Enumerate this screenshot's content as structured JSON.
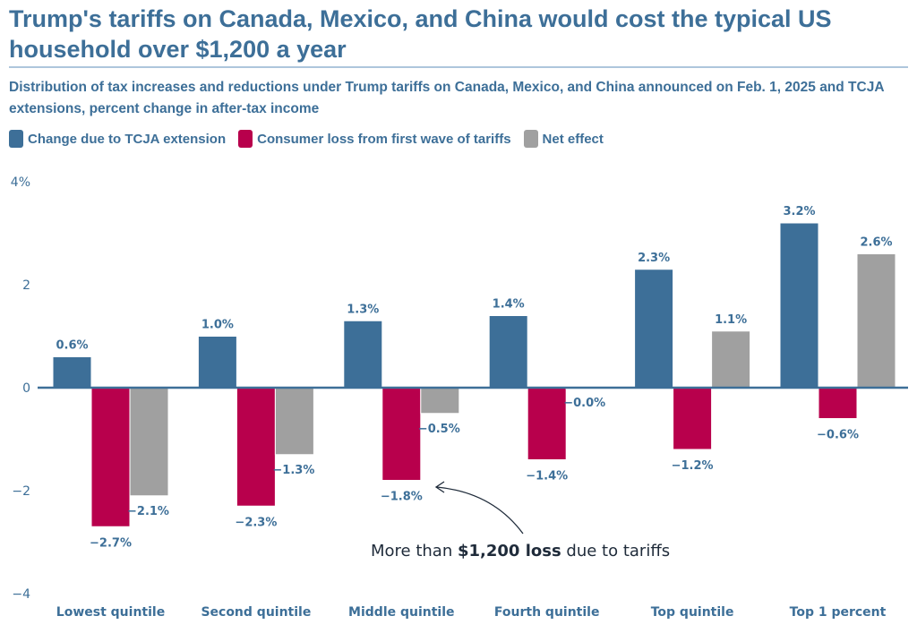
{
  "header": {
    "title": "Trump's tariffs on Canada, Mexico, and China would cost the typical US household over $1,200 a year",
    "subtitle": "Distribution of tax increases and reductions under Trump tariffs on Canada, Mexico, and China announced on Feb. 1, 2025 and TCJA extensions, percent change in after-tax income"
  },
  "colors": {
    "tcja": "#3d6f98",
    "tariff": "#b8004c",
    "net": "#a0a0a0",
    "text": "#3d6f98",
    "annotation": "#1f2b3a"
  },
  "chart_data": {
    "type": "bar",
    "title": "Trump's tariffs on Canada, Mexico, and China would cost the typical US household over $1,200 a year",
    "subtitle": "Distribution of tax increases and reductions under Trump tariffs on Canada, Mexico, and China announced on Feb. 1, 2025 and TCJA extensions, percent change in after-tax income",
    "xlabel": "",
    "ylabel": "",
    "ylim": [
      -4,
      4
    ],
    "yticks": [
      4,
      2,
      0,
      -2,
      -4
    ],
    "ytick_labels": [
      "4%",
      "2",
      "0",
      "−2",
      "−4"
    ],
    "grid": false,
    "legend_position": "top-left",
    "categories": [
      "Lowest quintile",
      "Second quintile",
      "Middle quintile",
      "Fourth quintile",
      "Top quintile",
      "Top 1 percent"
    ],
    "series": [
      {
        "name": "Change due to TCJA extension",
        "key": "tcja",
        "values": [
          0.6,
          1.0,
          1.3,
          1.4,
          2.3,
          3.2
        ],
        "labels": [
          "0.6%",
          "1.0%",
          "1.3%",
          "1.4%",
          "2.3%",
          "3.2%"
        ]
      },
      {
        "name": "Consumer loss from first wave of tariffs",
        "key": "tariff",
        "values": [
          -2.7,
          -2.3,
          -1.8,
          -1.4,
          -1.2,
          -0.6
        ],
        "labels": [
          "−2.7%",
          "−2.3%",
          "−1.8%",
          "−1.4%",
          "−1.2%",
          "−0.6%"
        ]
      },
      {
        "name": "Net effect",
        "key": "net",
        "values": [
          -2.1,
          -1.3,
          -0.5,
          -0.0,
          1.1,
          2.6
        ],
        "labels": [
          "−2.1%",
          "−1.3%",
          "−0.5%",
          "−0.0%",
          "1.1%",
          "2.6%"
        ]
      }
    ],
    "annotation": {
      "prefix": "More than ",
      "bold": "$1,200 loss",
      "suffix": " due to tariffs",
      "points_to": {
        "category": "Middle quintile",
        "series": "Consumer loss from first wave of tariffs"
      }
    }
  }
}
